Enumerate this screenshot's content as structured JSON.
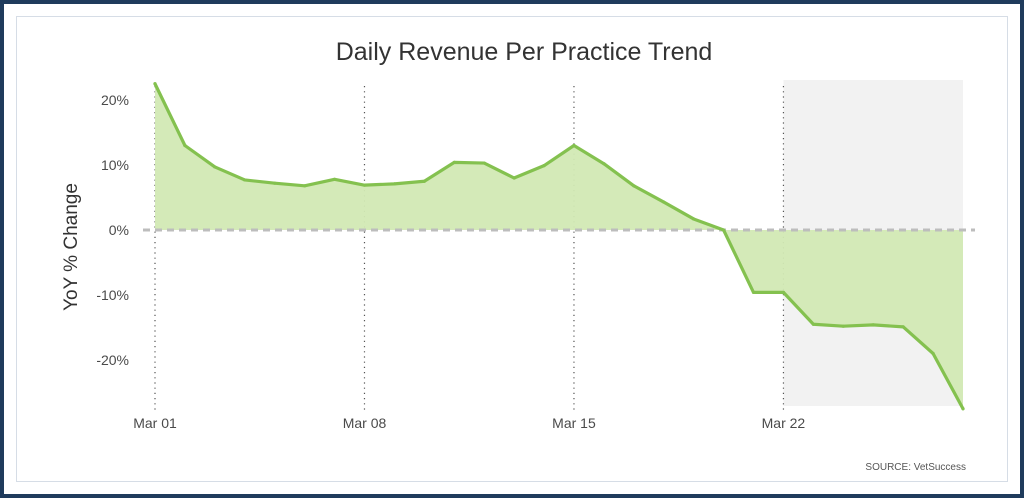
{
  "chart_data": {
    "type": "area",
    "title": "Daily Revenue Per Practice Trend",
    "xlabel": "",
    "ylabel": "YoY % Change",
    "ylim": [
      -27.5,
      22.5
    ],
    "yticks": [
      20,
      10,
      0,
      -10,
      -20
    ],
    "ytick_labels": [
      "20%",
      "10%",
      "0%",
      "-10%",
      "-20%"
    ],
    "xtick_labels": [
      "Mar 01",
      "Mar 08",
      "Mar 15",
      "Mar 22"
    ],
    "xtick_days": [
      1,
      8,
      15,
      22
    ],
    "x": [
      1,
      2,
      3,
      4,
      5,
      6,
      7,
      8,
      9,
      10,
      11,
      12,
      13,
      14,
      15,
      16,
      17,
      18,
      19,
      20,
      21,
      22,
      23,
      24,
      25,
      26,
      27,
      28
    ],
    "series": [
      {
        "values": [
          22.5,
          13.0,
          9.7,
          7.7,
          7.2,
          6.8,
          7.8,
          6.9,
          7.1,
          7.5,
          10.4,
          10.3,
          8.0,
          9.9,
          13.0,
          10.2,
          6.8,
          4.3,
          1.7,
          0.0,
          -9.6,
          -9.6,
          -14.5,
          -14.8,
          -14.6,
          -14.9,
          -19.0,
          -27.5
        ]
      }
    ],
    "shaded_region": {
      "from_day": 22,
      "to_day": 28
    },
    "zero_line": "dashed",
    "grid": false,
    "source": "SOURCE: VetSuccess",
    "colors": {
      "line": "#84c14f",
      "fill": "#d2e9b4",
      "shade": "#f2f2f2",
      "zero": "#bdbdbd",
      "text": "#4a4a4a"
    }
  }
}
